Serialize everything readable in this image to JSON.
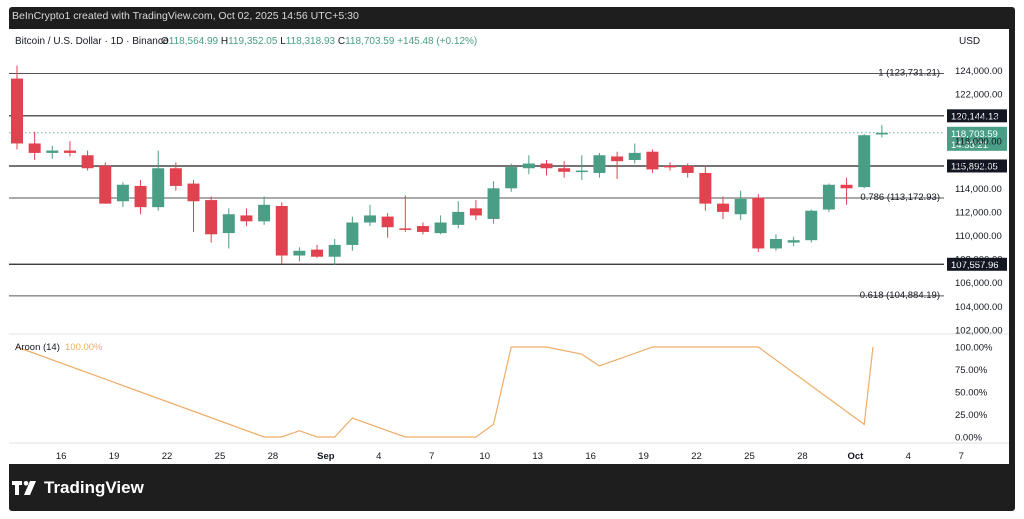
{
  "header": {
    "credit": "BeInCrypto1 created with TradingView.com, Oct 02, 2025 14:56 UTC+5:30"
  },
  "legend": {
    "symbol": "Bitcoin / U.S. Dollar · 1D · Binance",
    "o_label": "O",
    "o_value": "118,564.99",
    "h_label": "H",
    "h_value": "119,352.05",
    "l_label": "L",
    "l_value": "118,318.93",
    "c_label": "C",
    "c_value": "118,703.59",
    "change": "+145.48 (+0.12%)"
  },
  "currency": "USD",
  "brand": {
    "name": "TradingView"
  },
  "colors": {
    "up": "#4a9e86",
    "down": "#e0424f",
    "aroon": "#efad68",
    "fib": "#555555",
    "level": "#222222"
  },
  "chart_data": [
    {
      "type": "candlestick",
      "x_labels": [
        "16",
        "19",
        "22",
        "25",
        "28",
        "Sep",
        "4",
        "7",
        "10",
        "13",
        "16",
        "19",
        "22",
        "25",
        "28",
        "Oct",
        "4",
        "7"
      ],
      "y_ticks": [
        "124,000.00",
        "122,000.00",
        "120,000.00",
        "118,000.00",
        "116,000.00",
        "114,000.00",
        "112,000.00",
        "110,000.00",
        "108,000.00",
        "106,000.00",
        "104,000.00",
        "102,000.00"
      ],
      "y_tick_values": [
        124000,
        122000,
        120000,
        118000,
        116000,
        114000,
        112000,
        110000,
        108000,
        106000,
        104000,
        102000
      ],
      "ylim": [
        100800,
        125300
      ],
      "candles": [
        {
          "o": 123300,
          "h": 124400,
          "l": 117300,
          "c": 117800
        },
        {
          "o": 117800,
          "h": 118800,
          "l": 116400,
          "c": 117000
        },
        {
          "o": 117000,
          "h": 117600,
          "l": 116500,
          "c": 117200
        },
        {
          "o": 117200,
          "h": 118000,
          "l": 116700,
          "c": 117000
        },
        {
          "o": 116800,
          "h": 117200,
          "l": 115500,
          "c": 115700
        },
        {
          "o": 115900,
          "h": 116200,
          "l": 112700,
          "c": 112700
        },
        {
          "o": 112900,
          "h": 114500,
          "l": 112400,
          "c": 114300
        },
        {
          "o": 114200,
          "h": 114700,
          "l": 111800,
          "c": 112400
        },
        {
          "o": 112400,
          "h": 117200,
          "l": 112100,
          "c": 115700
        },
        {
          "o": 115700,
          "h": 116200,
          "l": 113800,
          "c": 114200
        },
        {
          "o": 114400,
          "h": 114700,
          "l": 110300,
          "c": 112900
        },
        {
          "o": 113000,
          "h": 113300,
          "l": 109400,
          "c": 110100
        },
        {
          "o": 110200,
          "h": 112300,
          "l": 108900,
          "c": 111800
        },
        {
          "o": 111700,
          "h": 112300,
          "l": 110800,
          "c": 111200
        },
        {
          "o": 111200,
          "h": 113300,
          "l": 110900,
          "c": 112600
        },
        {
          "o": 112500,
          "h": 112800,
          "l": 107600,
          "c": 108300
        },
        {
          "o": 108300,
          "h": 109000,
          "l": 107800,
          "c": 108700
        },
        {
          "o": 108800,
          "h": 109200,
          "l": 108100,
          "c": 108200
        },
        {
          "o": 108200,
          "h": 109700,
          "l": 107500,
          "c": 109200
        },
        {
          "o": 109200,
          "h": 111600,
          "l": 108700,
          "c": 111100
        },
        {
          "o": 111100,
          "h": 112600,
          "l": 110800,
          "c": 111700
        },
        {
          "o": 111600,
          "h": 111900,
          "l": 109800,
          "c": 110700
        },
        {
          "o": 110600,
          "h": 113400,
          "l": 110300,
          "c": 110500
        },
        {
          "o": 110800,
          "h": 111100,
          "l": 110100,
          "c": 110300
        },
        {
          "o": 110200,
          "h": 111700,
          "l": 110100,
          "c": 111100
        },
        {
          "o": 110900,
          "h": 112900,
          "l": 110600,
          "c": 112000
        },
        {
          "o": 112300,
          "h": 113000,
          "l": 111300,
          "c": 111700
        },
        {
          "o": 111400,
          "h": 114600,
          "l": 111000,
          "c": 114000
        },
        {
          "o": 114000,
          "h": 116100,
          "l": 113700,
          "c": 115800
        },
        {
          "o": 115700,
          "h": 116800,
          "l": 115200,
          "c": 116100
        },
        {
          "o": 116100,
          "h": 116400,
          "l": 115100,
          "c": 115700
        },
        {
          "o": 115700,
          "h": 116300,
          "l": 114900,
          "c": 115400
        },
        {
          "o": 115400,
          "h": 116800,
          "l": 114700,
          "c": 115500
        },
        {
          "o": 115300,
          "h": 117000,
          "l": 114900,
          "c": 116800
        },
        {
          "o": 116700,
          "h": 117100,
          "l": 114800,
          "c": 116300
        },
        {
          "o": 116400,
          "h": 117800,
          "l": 116100,
          "c": 117000
        },
        {
          "o": 117100,
          "h": 117300,
          "l": 115300,
          "c": 115600
        },
        {
          "o": 115900,
          "h": 116200,
          "l": 115500,
          "c": 115800
        },
        {
          "o": 115900,
          "h": 116100,
          "l": 114900,
          "c": 115300
        },
        {
          "o": 115300,
          "h": 115800,
          "l": 112100,
          "c": 112700
        },
        {
          "o": 112700,
          "h": 113300,
          "l": 111400,
          "c": 112000
        },
        {
          "o": 111800,
          "h": 113800,
          "l": 111300,
          "c": 113100
        },
        {
          "o": 113200,
          "h": 113500,
          "l": 108600,
          "c": 108900
        },
        {
          "o": 108900,
          "h": 110100,
          "l": 108700,
          "c": 109700
        },
        {
          "o": 109400,
          "h": 109900,
          "l": 109100,
          "c": 109600
        },
        {
          "o": 109600,
          "h": 112200,
          "l": 109400,
          "c": 112100
        },
        {
          "o": 112200,
          "h": 114400,
          "l": 112000,
          "c": 114300
        },
        {
          "o": 114300,
          "h": 114900,
          "l": 112600,
          "c": 114000
        },
        {
          "o": 114100,
          "h": 118600,
          "l": 114000,
          "c": 118500
        },
        {
          "o": 118565,
          "h": 119352,
          "l": 118319,
          "c": 118704
        }
      ],
      "levels": [
        {
          "label": "1 (123,731.21)",
          "value": 123731.21,
          "kind": "fib"
        },
        {
          "label": "120,144.13",
          "value": 120144.13,
          "kind": "level"
        },
        {
          "label": "115,892.05",
          "value": 115892.05,
          "kind": "level"
        },
        {
          "label": "0.786 (113,172.93)",
          "value": 113172.93,
          "kind": "fib"
        },
        {
          "label": "107,557.96",
          "value": 107557.96,
          "kind": "level"
        },
        {
          "label": "0.618 (104,884.19)",
          "value": 104884.19,
          "kind": "fib"
        }
      ],
      "last_price": {
        "value": 118703.59,
        "label": "118,703.59",
        "countdown": "14:33:21"
      }
    },
    {
      "type": "line",
      "title": "Aroon (14)",
      "value_label": "100.00%",
      "y_ticks": [
        "100.00%",
        "75.00%",
        "50.00%",
        "25.00%",
        "0.00%"
      ],
      "y_tick_values": [
        100,
        75,
        50,
        25,
        0
      ],
      "ylim": [
        0,
        100
      ],
      "x_index": [
        0,
        14,
        15,
        16,
        17,
        18,
        19,
        20,
        22,
        25,
        26,
        27,
        28,
        30,
        32,
        33,
        36,
        42,
        48,
        48.5
      ],
      "values": [
        100,
        0,
        0,
        7,
        0,
        0,
        21,
        14,
        0,
        0,
        0,
        14,
        100,
        100,
        92,
        79,
        100,
        100,
        14,
        100
      ]
    }
  ]
}
